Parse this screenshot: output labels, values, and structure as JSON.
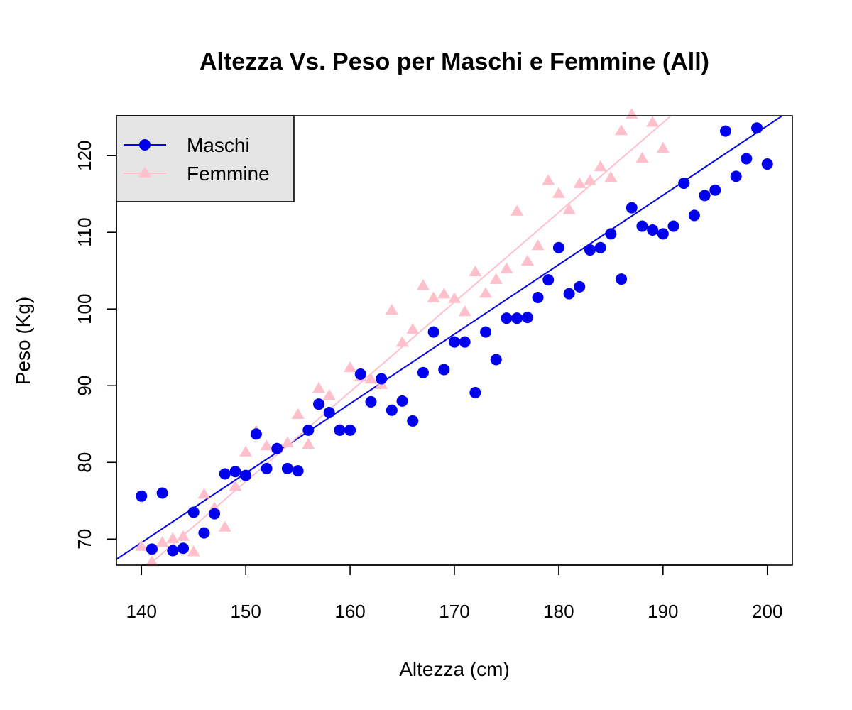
{
  "chart_data": {
    "type": "scatter",
    "title": "Altezza Vs. Peso per Maschi e Femmine (All)",
    "xlabel": "Altezza (cm)",
    "ylabel": "Peso (Kg)",
    "xlim": [
      137.6,
      202.4
    ],
    "ylim": [
      66.6,
      125.2
    ],
    "xticks": [
      "140",
      "150",
      "160",
      "170",
      "180",
      "190",
      "200"
    ],
    "yticks": [
      "70",
      "80",
      "90",
      "100",
      "110",
      "120"
    ],
    "grid": false,
    "legend_position": "top-left",
    "series": [
      {
        "name": "Maschi",
        "color": "#0000ee",
        "marker": "circle",
        "fit": {
          "slope": 0.906,
          "intercept": -57.3
        },
        "points": [
          [
            140,
            75.6
          ],
          [
            141,
            68.7
          ],
          [
            142,
            76.0
          ],
          [
            143,
            68.5
          ],
          [
            144,
            68.8
          ],
          [
            145,
            73.5
          ],
          [
            146,
            70.8
          ],
          [
            147,
            73.3
          ],
          [
            148,
            78.5
          ],
          [
            149,
            78.8
          ],
          [
            150,
            78.3
          ],
          [
            151,
            83.7
          ],
          [
            152,
            79.2
          ],
          [
            153,
            81.8
          ],
          [
            154,
            79.2
          ],
          [
            155,
            78.9
          ],
          [
            156,
            84.2
          ],
          [
            157,
            87.6
          ],
          [
            158,
            86.5
          ],
          [
            159,
            84.2
          ],
          [
            160,
            84.2
          ],
          [
            161,
            91.5
          ],
          [
            162,
            87.9
          ],
          [
            163,
            90.9
          ],
          [
            164,
            86.8
          ],
          [
            165,
            88.0
          ],
          [
            166,
            85.4
          ],
          [
            167,
            91.7
          ],
          [
            168,
            97.0
          ],
          [
            169,
            92.1
          ],
          [
            170,
            95.7
          ],
          [
            171,
            95.7
          ],
          [
            172,
            89.1
          ],
          [
            173,
            97.0
          ],
          [
            174,
            93.4
          ],
          [
            175,
            98.8
          ],
          [
            176,
            98.8
          ],
          [
            177,
            98.9
          ],
          [
            178,
            101.5
          ],
          [
            179,
            103.8
          ],
          [
            180,
            108.0
          ],
          [
            181,
            102.0
          ],
          [
            182,
            102.9
          ],
          [
            183,
            107.7
          ],
          [
            184,
            108.0
          ],
          [
            185,
            109.8
          ],
          [
            186,
            103.9
          ],
          [
            187,
            113.2
          ],
          [
            188,
            110.8
          ],
          [
            189,
            110.3
          ],
          [
            190,
            109.8
          ],
          [
            191,
            110.8
          ],
          [
            192,
            116.4
          ],
          [
            193,
            112.2
          ],
          [
            194,
            114.8
          ],
          [
            195,
            115.5
          ],
          [
            196,
            123.2
          ],
          [
            197,
            117.3
          ],
          [
            198,
            119.6
          ],
          [
            199,
            123.6
          ],
          [
            200,
            118.9
          ]
        ]
      },
      {
        "name": "Femmine",
        "color": "#ffc0cb",
        "marker": "triangle",
        "fit": {
          "slope": 1.17,
          "intercept": -98.0
        },
        "points": [
          [
            140,
            69.0
          ],
          [
            141,
            67.0
          ],
          [
            142,
            69.5
          ],
          [
            143,
            70.0
          ],
          [
            144,
            70.3
          ],
          [
            145,
            68.3
          ],
          [
            146,
            75.8
          ],
          [
            147,
            74.0
          ],
          [
            148,
            71.5
          ],
          [
            149,
            76.8
          ],
          [
            150,
            81.3
          ],
          [
            151,
            84.0
          ],
          [
            152,
            82.1
          ],
          [
            153,
            81.8
          ],
          [
            154,
            82.5
          ],
          [
            155,
            86.2
          ],
          [
            156,
            82.3
          ],
          [
            157,
            89.6
          ],
          [
            158,
            88.7
          ],
          [
            159,
            84.3
          ],
          [
            160,
            92.3
          ],
          [
            161,
            91.1
          ],
          [
            162,
            90.8
          ],
          [
            163,
            90.1
          ],
          [
            164,
            99.8
          ],
          [
            165,
            95.6
          ],
          [
            166,
            97.3
          ],
          [
            167,
            103.0
          ],
          [
            168,
            101.4
          ],
          [
            169,
            101.9
          ],
          [
            170,
            101.3
          ],
          [
            171,
            99.6
          ],
          [
            172,
            104.8
          ],
          [
            173,
            102.0
          ],
          [
            174,
            103.8
          ],
          [
            175,
            105.2
          ],
          [
            176,
            112.7
          ],
          [
            177,
            106.2
          ],
          [
            178,
            108.2
          ],
          [
            179,
            116.7
          ],
          [
            180,
            115.0
          ],
          [
            181,
            112.9
          ],
          [
            182,
            116.3
          ],
          [
            183,
            116.7
          ],
          [
            184,
            118.5
          ],
          [
            185,
            117.1
          ],
          [
            186,
            123.2
          ],
          [
            187,
            125.3
          ],
          [
            188,
            119.6
          ],
          [
            189,
            124.3
          ],
          [
            190,
            120.9
          ]
        ]
      }
    ]
  }
}
